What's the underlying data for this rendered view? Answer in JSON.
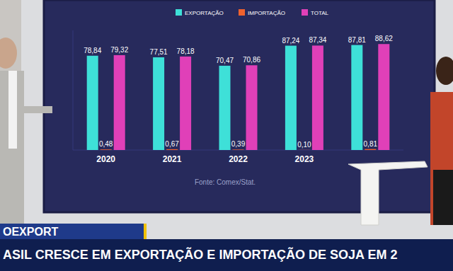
{
  "chart_data": {
    "type": "bar",
    "categories": [
      "2020",
      "2021",
      "2022",
      "2023",
      null
    ],
    "series": [
      {
        "name": "EXPORTAÇÃO",
        "color": "#3ee0d8",
        "values": [
          78.84,
          77.51,
          70.47,
          87.24,
          87.81
        ],
        "value_labels": [
          "78,84",
          "77,51",
          "70,47",
          "87,24",
          "87,81"
        ]
      },
      {
        "name": "IMPORTAÇÃO",
        "color": "#f0622e",
        "values": [
          0.48,
          0.67,
          0.39,
          0.1,
          0.81
        ],
        "value_labels": [
          "0,48",
          "0,67",
          "0,39",
          "0,10",
          "0,81"
        ]
      },
      {
        "name": "TOTAL",
        "color": "#e040b8",
        "values": [
          79.32,
          78.18,
          70.86,
          87.34,
          88.62
        ],
        "value_labels": [
          "79,32",
          "78,18",
          "70,86",
          "87,34",
          "88,62"
        ]
      }
    ],
    "annotations": [
      "Fonte: Comex/Stat."
    ],
    "ylim": [
      0,
      100
    ],
    "grid": false,
    "legend": "top",
    "data_labels": true,
    "tick_labels": "x"
  },
  "screen": {
    "tag": "OEXPORT",
    "headline": "ASIL CRESCE EM EXPORTAÇÃO E IMPORTAÇÃO DE SOJA EM 2"
  }
}
